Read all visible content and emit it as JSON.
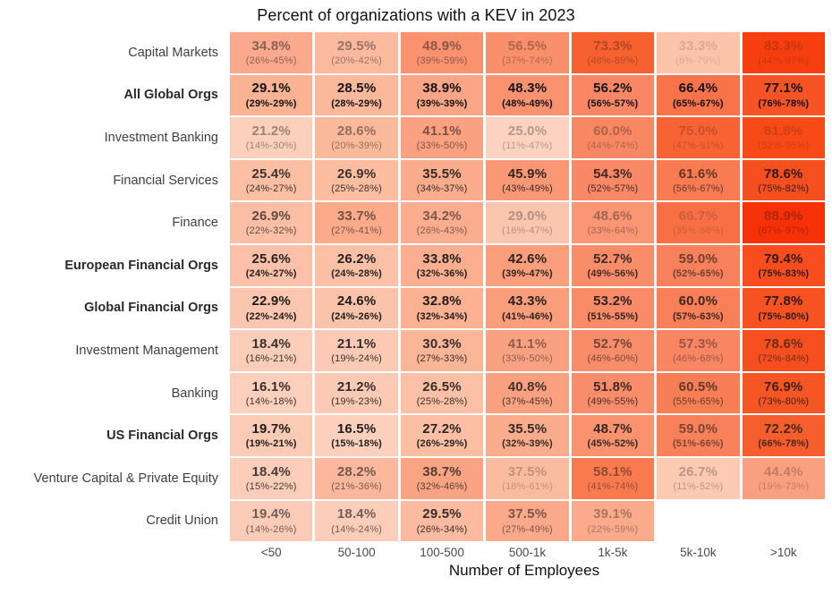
{
  "chart_data": {
    "type": "heatmap",
    "title": "Percent of organizations with a KEV in 2023",
    "xlabel": "Number of Employees",
    "ylabel": "",
    "unit": "%",
    "legend": "none",
    "grid": false,
    "value_format": "percent with one decimal, confidence interval below as (lo%-hi%)",
    "colorscale": {
      "low_color": "#fdd5c4",
      "high_color": "#f62e05",
      "fade": "cell background and text fade with statistical uncertainty"
    },
    "columns": [
      "<50",
      "50-100",
      "100-500",
      "500-1k",
      "1k-5k",
      "5k-10k",
      ">10k"
    ],
    "rows": [
      {
        "label": "Capital Markets",
        "bold": false,
        "cells": [
          {
            "value": 34.8,
            "ci_low": 26,
            "ci_high": 45,
            "bg": "#faa98c",
            "text_alpha": 0.48
          },
          {
            "value": 29.5,
            "ci_low": 20,
            "ci_high": 42,
            "bg": "#fbb99e",
            "text_alpha": 0.42
          },
          {
            "value": 48.9,
            "ci_low": 39,
            "ci_high": 59,
            "bg": "#fa9270",
            "text_alpha": 0.48
          },
          {
            "value": 56.5,
            "ci_low": 37,
            "ci_high": 74,
            "bg": "#f98f6b",
            "text_alpha": 0.32
          },
          {
            "value": 73.3,
            "ci_low": 48,
            "ci_high": 89,
            "bg": "#f7602f",
            "text_alpha": 0.3
          },
          {
            "value": 33.3,
            "ci_low": 6,
            "ci_high": 79,
            "bg": "#fcc3ab",
            "text_alpha": 0.15
          },
          {
            "value": 83.3,
            "ci_low": 44,
            "ci_high": 97,
            "bg": "#f63e0e",
            "text_alpha": 0.2
          }
        ]
      },
      {
        "label": "All Global Orgs",
        "bold": true,
        "cells": [
          {
            "value": 29.1,
            "ci_low": 29,
            "ci_high": 29,
            "bg": "#fbb394",
            "text_alpha": 1
          },
          {
            "value": 28.5,
            "ci_low": 28,
            "ci_high": 29,
            "bg": "#fbb89a",
            "text_alpha": 1
          },
          {
            "value": 38.9,
            "ci_low": 39,
            "ci_high": 39,
            "bg": "#faa585",
            "text_alpha": 1
          },
          {
            "value": 48.3,
            "ci_low": 48,
            "ci_high": 49,
            "bg": "#fa9270",
            "text_alpha": 1
          },
          {
            "value": 56.2,
            "ci_low": 56,
            "ci_high": 57,
            "bg": "#f98765",
            "text_alpha": 1
          },
          {
            "value": 66.4,
            "ci_low": 65,
            "ci_high": 67,
            "bg": "#f8724a",
            "text_alpha": 1
          },
          {
            "value": 77.1,
            "ci_low": 76,
            "ci_high": 78,
            "bg": "#f75325",
            "text_alpha": 1
          }
        ]
      },
      {
        "label": "Investment Banking",
        "bold": false,
        "cells": [
          {
            "value": 21.2,
            "ci_low": 14,
            "ci_high": 30,
            "bg": "#fdd0bb",
            "text_alpha": 0.42
          },
          {
            "value": 28.6,
            "ci_low": 20,
            "ci_high": 39,
            "bg": "#fbb99c",
            "text_alpha": 0.45
          },
          {
            "value": 41.1,
            "ci_low": 33,
            "ci_high": 50,
            "bg": "#faa181",
            "text_alpha": 0.55
          },
          {
            "value": 25.0,
            "ci_low": 11,
            "ci_high": 47,
            "bg": "#fdd2c0",
            "text_alpha": 0.3
          },
          {
            "value": 60.0,
            "ci_low": 44,
            "ci_high": 74,
            "bg": "#f88863",
            "text_alpha": 0.32
          },
          {
            "value": 75.0,
            "ci_low": 47,
            "ci_high": 91,
            "bg": "#f86334",
            "text_alpha": 0.22
          },
          {
            "value": 81.8,
            "ci_low": 52,
            "ci_high": 95,
            "bg": "#f74a16",
            "text_alpha": 0.18
          }
        ]
      },
      {
        "label": "Financial Services",
        "bold": false,
        "cells": [
          {
            "value": 25.4,
            "ci_low": 24,
            "ci_high": 27,
            "bg": "#fcbfa4",
            "text_alpha": 0.82
          },
          {
            "value": 26.9,
            "ci_low": 25,
            "ci_high": 28,
            "bg": "#fcbda1",
            "text_alpha": 0.82
          },
          {
            "value": 35.5,
            "ci_low": 34,
            "ci_high": 37,
            "bg": "#fbac8d",
            "text_alpha": 0.85
          },
          {
            "value": 45.9,
            "ci_low": 43,
            "ci_high": 49,
            "bg": "#fa9876",
            "text_alpha": 0.85
          },
          {
            "value": 54.3,
            "ci_low": 52,
            "ci_high": 57,
            "bg": "#f98966",
            "text_alpha": 0.8
          },
          {
            "value": 61.6,
            "ci_low": 56,
            "ci_high": 67,
            "bg": "#f87b52",
            "text_alpha": 0.65
          },
          {
            "value": 78.6,
            "ci_low": 75,
            "ci_high": 82,
            "bg": "#f64f1f",
            "text_alpha": 0.85
          }
        ]
      },
      {
        "label": "Finance",
        "bold": false,
        "cells": [
          {
            "value": 26.9,
            "ci_low": 22,
            "ci_high": 32,
            "bg": "#fcbfa5",
            "text_alpha": 0.68
          },
          {
            "value": 33.7,
            "ci_low": 27,
            "ci_high": 41,
            "bg": "#fbaa8a",
            "text_alpha": 0.58
          },
          {
            "value": 34.2,
            "ci_low": 26,
            "ci_high": 43,
            "bg": "#fbae8f",
            "text_alpha": 0.55
          },
          {
            "value": 29.0,
            "ci_low": 16,
            "ci_high": 47,
            "bg": "#fcc5ae",
            "text_alpha": 0.3
          },
          {
            "value": 48.6,
            "ci_low": 33,
            "ci_high": 64,
            "bg": "#fa9673",
            "text_alpha": 0.38
          },
          {
            "value": 66.7,
            "ci_low": 35,
            "ci_high": 88,
            "bg": "#f86f45",
            "text_alpha": 0.18
          },
          {
            "value": 88.9,
            "ci_low": 67,
            "ci_high": 97,
            "bg": "#f63007",
            "text_alpha": 0.3
          }
        ]
      },
      {
        "label": "European Financial Orgs",
        "bold": true,
        "cells": [
          {
            "value": 25.6,
            "ci_low": 24,
            "ci_high": 27,
            "bg": "#fcc1a8",
            "text_alpha": 0.92
          },
          {
            "value": 26.2,
            "ci_low": 24,
            "ci_high": 28,
            "bg": "#fcc0a6",
            "text_alpha": 0.92
          },
          {
            "value": 33.8,
            "ci_low": 32,
            "ci_high": 36,
            "bg": "#fbaf90",
            "text_alpha": 0.92
          },
          {
            "value": 42.6,
            "ci_low": 39,
            "ci_high": 47,
            "bg": "#fa9e7c",
            "text_alpha": 0.88
          },
          {
            "value": 52.7,
            "ci_low": 49,
            "ci_high": 56,
            "bg": "#f98c69",
            "text_alpha": 0.8
          },
          {
            "value": 59.0,
            "ci_low": 52,
            "ci_high": 65,
            "bg": "#f8815b",
            "text_alpha": 0.6
          },
          {
            "value": 79.4,
            "ci_low": 75,
            "ci_high": 83,
            "bg": "#f94d20",
            "text_alpha": 0.85
          }
        ]
      },
      {
        "label": "Global Financial Orgs",
        "bold": true,
        "cells": [
          {
            "value": 22.9,
            "ci_low": 22,
            "ci_high": 24,
            "bg": "#fcc6b0",
            "text_alpha": 0.95
          },
          {
            "value": 24.6,
            "ci_low": 24,
            "ci_high": 26,
            "bg": "#fcc3ab",
            "text_alpha": 0.95
          },
          {
            "value": 32.8,
            "ci_low": 32,
            "ci_high": 34,
            "bg": "#fbb192",
            "text_alpha": 0.95
          },
          {
            "value": 43.3,
            "ci_low": 41,
            "ci_high": 46,
            "bg": "#fa9d7b",
            "text_alpha": 0.9
          },
          {
            "value": 53.2,
            "ci_low": 51,
            "ci_high": 55,
            "bg": "#f98b68",
            "text_alpha": 0.88
          },
          {
            "value": 60.0,
            "ci_low": 57,
            "ci_high": 63,
            "bg": "#f87f57",
            "text_alpha": 0.82
          },
          {
            "value": 77.8,
            "ci_low": 75,
            "ci_high": 80,
            "bg": "#f65222",
            "text_alpha": 0.88
          }
        ]
      },
      {
        "label": "Investment Management",
        "bold": false,
        "cells": [
          {
            "value": 18.4,
            "ci_low": 16,
            "ci_high": 21,
            "bg": "#fccdb9",
            "text_alpha": 0.85
          },
          {
            "value": 21.1,
            "ci_low": 19,
            "ci_high": 24,
            "bg": "#fcc9b4",
            "text_alpha": 0.85
          },
          {
            "value": 30.3,
            "ci_low": 27,
            "ci_high": 33,
            "bg": "#fbb698",
            "text_alpha": 0.85
          },
          {
            "value": 41.1,
            "ci_low": 33,
            "ci_high": 50,
            "bg": "#faa181",
            "text_alpha": 0.48
          },
          {
            "value": 52.7,
            "ci_low": 46,
            "ci_high": 60,
            "bg": "#f98c69",
            "text_alpha": 0.58
          },
          {
            "value": 57.3,
            "ci_low": 46,
            "ci_high": 68,
            "bg": "#f98563",
            "text_alpha": 0.42
          },
          {
            "value": 78.6,
            "ci_low": 72,
            "ci_high": 84,
            "bg": "#f64f1f",
            "text_alpha": 0.6
          }
        ]
      },
      {
        "label": "Banking",
        "bold": false,
        "cells": [
          {
            "value": 16.1,
            "ci_low": 14,
            "ci_high": 18,
            "bg": "#fdd0bd",
            "text_alpha": 0.85
          },
          {
            "value": 21.2,
            "ci_low": 19,
            "ci_high": 23,
            "bg": "#fcc9b4",
            "text_alpha": 0.85
          },
          {
            "value": 26.5,
            "ci_low": 25,
            "ci_high": 28,
            "bg": "#fcc0a6",
            "text_alpha": 0.85
          },
          {
            "value": 40.8,
            "ci_low": 37,
            "ci_high": 45,
            "bg": "#faa181",
            "text_alpha": 0.78
          },
          {
            "value": 51.8,
            "ci_low": 49,
            "ci_high": 55,
            "bg": "#f98d6b",
            "text_alpha": 0.8
          },
          {
            "value": 60.5,
            "ci_low": 55,
            "ci_high": 65,
            "bg": "#f87e56",
            "text_alpha": 0.65
          },
          {
            "value": 76.9,
            "ci_low": 73,
            "ci_high": 80,
            "bg": "#f65524",
            "text_alpha": 0.8
          }
        ]
      },
      {
        "label": "US Financial Orgs",
        "bold": true,
        "cells": [
          {
            "value": 19.7,
            "ci_low": 19,
            "ci_high": 21,
            "bg": "#fccbb6",
            "text_alpha": 0.95
          },
          {
            "value": 16.5,
            "ci_low": 15,
            "ci_high": 18,
            "bg": "#fdd0bd",
            "text_alpha": 0.95
          },
          {
            "value": 27.2,
            "ci_low": 26,
            "ci_high": 29,
            "bg": "#fcbfa4",
            "text_alpha": 0.9
          },
          {
            "value": 35.5,
            "ci_low": 32,
            "ci_high": 39,
            "bg": "#fbac8d",
            "text_alpha": 0.85
          },
          {
            "value": 48.7,
            "ci_low": 45,
            "ci_high": 52,
            "bg": "#fa9270",
            "text_alpha": 0.85
          },
          {
            "value": 59.0,
            "ci_low": 51,
            "ci_high": 66,
            "bg": "#f8815b",
            "text_alpha": 0.55
          },
          {
            "value": 72.2,
            "ci_low": 66,
            "ci_high": 78,
            "bg": "#f75e2e",
            "text_alpha": 0.75
          }
        ]
      },
      {
        "label": "Venture Capital & Private Equity",
        "bold": false,
        "cells": [
          {
            "value": 18.4,
            "ci_low": 15,
            "ci_high": 22,
            "bg": "#fccdb9",
            "text_alpha": 0.78
          },
          {
            "value": 28.2,
            "ci_low": 21,
            "ci_high": 36,
            "bg": "#fbb89c",
            "text_alpha": 0.58
          },
          {
            "value": 38.7,
            "ci_low": 32,
            "ci_high": 46,
            "bg": "#faa484",
            "text_alpha": 0.72
          },
          {
            "value": 37.5,
            "ci_low": 18,
            "ci_high": 61,
            "bg": "#fbbb9e",
            "text_alpha": 0.25
          },
          {
            "value": 58.1,
            "ci_low": 41,
            "ci_high": 74,
            "bg": "#f87a4e",
            "text_alpha": 0.45
          },
          {
            "value": 26.7,
            "ci_low": 11,
            "ci_high": 52,
            "bg": "#fcc9b3",
            "text_alpha": 0.28
          },
          {
            "value": 44.4,
            "ci_low": 19,
            "ci_high": 73,
            "bg": "#faa080",
            "text_alpha": 0.25
          }
        ]
      },
      {
        "label": "Credit Union",
        "bold": false,
        "cells": [
          {
            "value": 19.4,
            "ci_low": 14,
            "ci_high": 26,
            "bg": "#fcccb8",
            "text_alpha": 0.6
          },
          {
            "value": 18.4,
            "ci_low": 14,
            "ci_high": 24,
            "bg": "#fccdb9",
            "text_alpha": 0.6
          },
          {
            "value": 29.5,
            "ci_low": 26,
            "ci_high": 34,
            "bg": "#fcbba0",
            "text_alpha": 0.85
          },
          {
            "value": 37.5,
            "ci_low": 27,
            "ci_high": 49,
            "bg": "#fba98a",
            "text_alpha": 0.55
          },
          {
            "value": 39.1,
            "ci_low": 22,
            "ci_high": 59,
            "bg": "#fbaa8b",
            "text_alpha": 0.35
          },
          null,
          null
        ]
      }
    ]
  }
}
